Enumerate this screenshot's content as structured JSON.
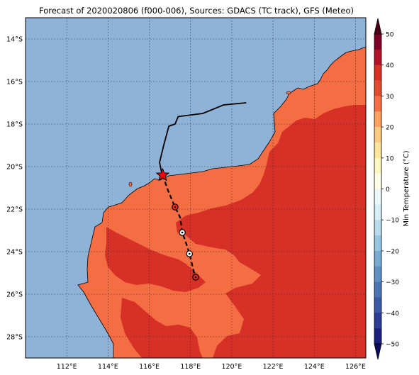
{
  "title": "Forecast of 2020020806 (f000-006), Sources: GDACS (TC track), GFS (Meteo)",
  "map": {
    "lon_range": [
      110.0,
      126.5
    ],
    "lat_range": [
      -29.0,
      -13.0
    ],
    "lon_ticks": [
      {
        "value": 112,
        "label": "112°E"
      },
      {
        "value": 114,
        "label": "114°E"
      },
      {
        "value": 116,
        "label": "116°E"
      },
      {
        "value": 118,
        "label": "118°E"
      },
      {
        "value": 120,
        "label": "120°E"
      },
      {
        "value": 122,
        "label": "122°E"
      },
      {
        "value": 124,
        "label": "124°E"
      },
      {
        "value": 126,
        "label": "126°E"
      }
    ],
    "lat_ticks": [
      {
        "value": -14,
        "label": "14°S"
      },
      {
        "value": -16,
        "label": "16°S"
      },
      {
        "value": -18,
        "label": "18°S"
      },
      {
        "value": -20,
        "label": "20°S"
      },
      {
        "value": -22,
        "label": "22°S"
      },
      {
        "value": -24,
        "label": "24°S"
      },
      {
        "value": -26,
        "label": "26°S"
      },
      {
        "value": -28,
        "label": "28°S"
      }
    ],
    "grid": true,
    "ocean_color": "#8fb2d8"
  },
  "colorbar": {
    "label": "Min Temperature (°C)",
    "ticks": [
      {
        "value": 50,
        "label": "50"
      },
      {
        "value": 40,
        "label": "40"
      },
      {
        "value": 30,
        "label": "30"
      },
      {
        "value": 20,
        "label": "20"
      },
      {
        "value": 10,
        "label": "10"
      },
      {
        "value": 0,
        "label": "0"
      },
      {
        "value": -10,
        "label": "−10"
      },
      {
        "value": -20,
        "label": "−20"
      },
      {
        "value": -30,
        "label": "−30"
      },
      {
        "value": -40,
        "label": "−40"
      },
      {
        "value": -50,
        "label": "−50"
      }
    ],
    "bins": [
      {
        "from": 45,
        "to": 50,
        "color": "#7f0025"
      },
      {
        "from": 40,
        "to": 45,
        "color": "#b3112a"
      },
      {
        "from": 35,
        "to": 40,
        "color": "#d63027"
      },
      {
        "from": 30,
        "to": 35,
        "color": "#e04a2f"
      },
      {
        "from": 25,
        "to": 30,
        "color": "#f46d43"
      },
      {
        "from": 20,
        "to": 25,
        "color": "#fba05d"
      },
      {
        "from": 15,
        "to": 20,
        "color": "#fdc980"
      },
      {
        "from": 10,
        "to": 15,
        "color": "#fee49a"
      },
      {
        "from": 5,
        "to": 10,
        "color": "#fff6c4"
      },
      {
        "from": 0,
        "to": 5,
        "color": "#ffffe8"
      },
      {
        "from": -5,
        "to": 0,
        "color": "#eef8fb"
      },
      {
        "from": -10,
        "to": -5,
        "color": "#d6eef5"
      },
      {
        "from": -15,
        "to": -10,
        "color": "#b7dbea"
      },
      {
        "from": -20,
        "to": -15,
        "color": "#96c6df"
      },
      {
        "from": -25,
        "to": -20,
        "color": "#79a9d0"
      },
      {
        "from": -30,
        "to": -25,
        "color": "#5f8ec3"
      },
      {
        "from": -35,
        "to": -30,
        "color": "#4a73b4"
      },
      {
        "from": -40,
        "to": -35,
        "color": "#3a58a4"
      },
      {
        "from": -45,
        "to": -40,
        "color": "#2c3b95"
      },
      {
        "from": -50,
        "to": -45,
        "color": "#1d1f80"
      }
    ],
    "under_color": "#0b0b60",
    "over_color": "#4a0014"
  },
  "land": {
    "zone_25_30_color": "#f46d43",
    "zone_30_35_color": "#d73027"
  },
  "tc_track": {
    "past_color": "#000000",
    "past": [
      [
        120.7,
        -17.0
      ],
      [
        119.6,
        -17.1
      ],
      [
        118.6,
        -17.5
      ],
      [
        117.4,
        -17.65
      ],
      [
        117.25,
        -18.0
      ],
      [
        116.95,
        -18.1
      ],
      [
        116.7,
        -19.0
      ],
      [
        116.5,
        -19.8
      ],
      [
        116.6,
        -20.3
      ]
    ],
    "forecast_color": "#000000",
    "forecast": [
      [
        116.65,
        -20.4
      ],
      [
        116.9,
        -21.1
      ],
      [
        117.2,
        -21.8
      ],
      [
        117.5,
        -22.4
      ],
      [
        117.6,
        -23.1
      ],
      [
        117.75,
        -23.5
      ],
      [
        117.95,
        -24.1
      ],
      [
        118.05,
        -24.5
      ],
      [
        118.2,
        -25.1
      ]
    ],
    "current_position": [
      116.65,
      -20.4
    ],
    "current_marker_color": "#ff0000",
    "forecast_positions": [
      {
        "lon": 117.25,
        "lat": -21.9,
        "fill": "#ff2a1a"
      },
      {
        "lon": 117.6,
        "lat": -23.1,
        "fill": "#ffffff"
      },
      {
        "lon": 117.95,
        "lat": -24.1,
        "fill": "#ffffff"
      },
      {
        "lon": 118.25,
        "lat": -25.2,
        "fill": "none"
      }
    ]
  }
}
